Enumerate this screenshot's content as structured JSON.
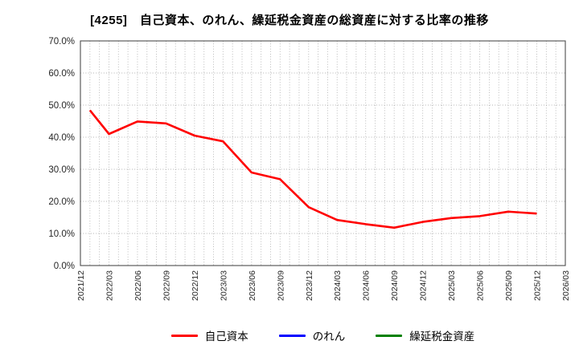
{
  "title": "[4255]　自己資本、のれん、繰延税金資産の総資産に対する比率の推移",
  "chart_data": {
    "type": "line",
    "title": "[4255]　自己資本、のれん、繰延税金資産の総資産に対する比率の推移",
    "grid": true,
    "legend_position": "bottom",
    "x_axis": {
      "tick_labels": [
        "2021/12",
        "2022/03",
        "2022/06",
        "2022/09",
        "2022/12",
        "2023/03",
        "2023/06",
        "2023/09",
        "2023/12",
        "2024/03",
        "2024/06",
        "2024/09",
        "2024/12",
        "2025/03",
        "2025/06",
        "2025/09",
        "2025/12",
        "2026/03"
      ],
      "months_span": 51,
      "major_tick_every_months": 3,
      "minor_grid_every_months": 1
    },
    "y_axis": {
      "tick_labels": [
        "0.0%",
        "10.0%",
        "20.0%",
        "30.0%",
        "40.0%",
        "50.0%",
        "60.0%",
        "70.0%"
      ],
      "min": 0,
      "max": 70,
      "unit": "%"
    },
    "series": [
      {
        "name": "自己資本",
        "color": "#ff0000",
        "periods": [
          "2022/01",
          "2022/03",
          "2022/06",
          "2022/09",
          "2022/12",
          "2023/03",
          "2023/06",
          "2023/09",
          "2023/12",
          "2024/03",
          "2024/06",
          "2024/09",
          "2024/12",
          "2025/03",
          "2025/06",
          "2025/09",
          "2025/12"
        ],
        "x_months": [
          1,
          3,
          6,
          9,
          12,
          15,
          18,
          21,
          24,
          27,
          30,
          33,
          36,
          39,
          42,
          45,
          48
        ],
        "values": [
          48.4,
          41.0,
          44.9,
          44.3,
          40.5,
          38.7,
          29.0,
          26.9,
          18.2,
          14.2,
          12.9,
          11.8,
          13.6,
          14.8,
          15.4,
          16.8,
          16.2
        ]
      },
      {
        "name": "のれん",
        "color": "#0000ff",
        "periods": [],
        "x_months": [],
        "values": []
      },
      {
        "name": "繰延税金資産",
        "color": "#008000",
        "periods": [],
        "x_months": [],
        "values": []
      }
    ],
    "colors": {
      "grid": "#b3b3b3",
      "axis_border": "#4d4d4d",
      "tick_label": "#262626",
      "background": "#ffffff"
    }
  }
}
